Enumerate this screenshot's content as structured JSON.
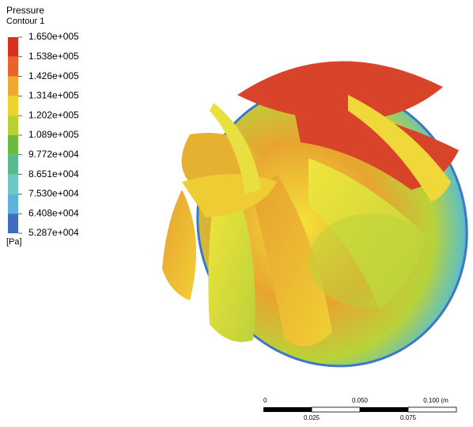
{
  "legend": {
    "title": "Pressure",
    "subtitle": "Contour 1",
    "labels": [
      "1.650e+005",
      "1.538e+005",
      "1.426e+005",
      "1.314e+005",
      "1.202e+005",
      "1.089e+005",
      "9.772e+004",
      "8.651e+004",
      "7.530e+004",
      "6.408e+004",
      "5.287e+004"
    ],
    "unit": "[Pa]"
  },
  "scale_bar": {
    "top_labels": [
      "0",
      "0.050",
      "0.100 (m"
    ],
    "bottom_labels": [
      "0.025",
      "0.075"
    ]
  }
}
